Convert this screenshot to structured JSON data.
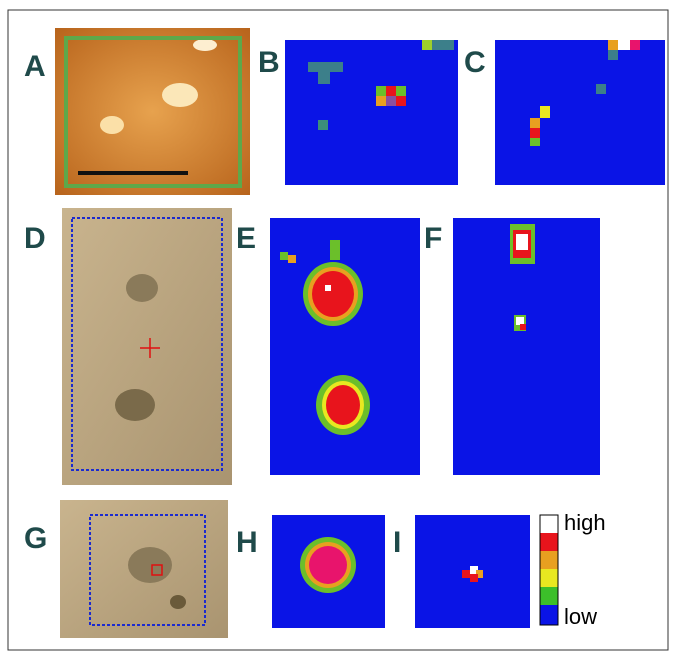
{
  "panels": [
    {
      "label": "A"
    },
    {
      "label": "B"
    },
    {
      "label": "C"
    },
    {
      "label": "D"
    },
    {
      "label": "E"
    },
    {
      "label": "F"
    },
    {
      "label": "G"
    },
    {
      "label": "H"
    },
    {
      "label": "I"
    }
  ],
  "colorbar": {
    "high": "high",
    "low": "low"
  }
}
